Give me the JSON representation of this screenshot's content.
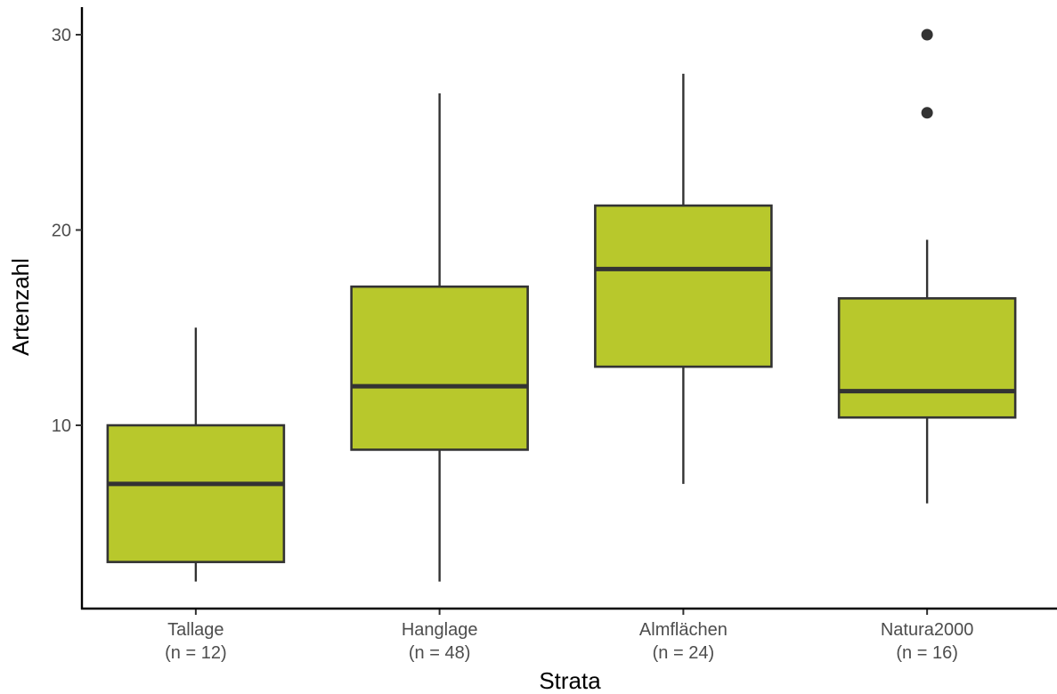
{
  "chart_data": {
    "type": "box",
    "xlabel": "Strata",
    "ylabel": "Artenzahl",
    "ylim": [
      0.5,
      31.4
    ],
    "yticks": [
      10,
      20,
      30
    ],
    "grid": false,
    "categories": [
      {
        "name": "Tallage",
        "n_label": "(n = 12)",
        "whisker_low": 2,
        "q1": 3,
        "median": 7,
        "q3": 10,
        "whisker_high": 15,
        "outliers": []
      },
      {
        "name": "Hanglage",
        "n_label": "(n = 48)",
        "whisker_low": 2,
        "q1": 8.75,
        "median": 12,
        "q3": 17.1,
        "whisker_high": 27,
        "outliers": []
      },
      {
        "name": "Almflächen",
        "n_label": "(n = 24)",
        "whisker_low": 7,
        "q1": 13,
        "median": 18,
        "q3": 21.25,
        "whisker_high": 28,
        "outliers": []
      },
      {
        "name": "Natura2000",
        "n_label": "(n = 16)",
        "whisker_low": 6,
        "q1": 10.4,
        "median": 11.75,
        "q3": 16.5,
        "whisker_high": 19.5,
        "outliers": [
          26,
          30
        ]
      }
    ],
    "colors": {
      "box_fill": "#b8c82c",
      "box_stroke": "#333333",
      "axis": "#000000",
      "tick_text": "#4d4d4d"
    }
  }
}
